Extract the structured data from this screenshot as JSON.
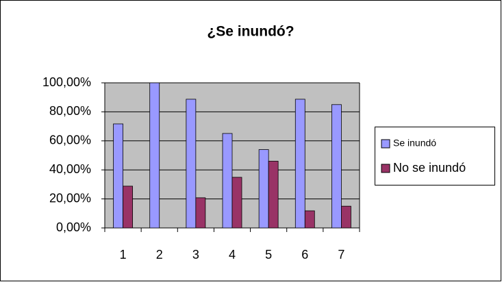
{
  "chart_data": {
    "type": "bar",
    "title": "¿Se inundó?",
    "categories": [
      "1",
      "2",
      "3",
      "4",
      "5",
      "6",
      "7"
    ],
    "series": [
      {
        "name": "Se inundó",
        "color": "#9999ff",
        "values": [
          71.7,
          100,
          88.7,
          65.1,
          54,
          88.7,
          85
        ]
      },
      {
        "name": "No se inundó",
        "color": "#993366",
        "values": [
          28.8,
          0,
          20.8,
          34.9,
          46,
          11.8,
          15
        ]
      }
    ],
    "ylim": [
      0,
      100
    ],
    "yticks": [
      {
        "value": 0,
        "label": "0,00%"
      },
      {
        "value": 20,
        "label": "20,00%"
      },
      {
        "value": 40,
        "label": "40,00%"
      },
      {
        "value": 60,
        "label": "60,00%"
      },
      {
        "value": 80,
        "label": "80,00%"
      },
      {
        "value": 100,
        "label": "100,00%"
      }
    ],
    "grid": true,
    "legend": "right"
  }
}
